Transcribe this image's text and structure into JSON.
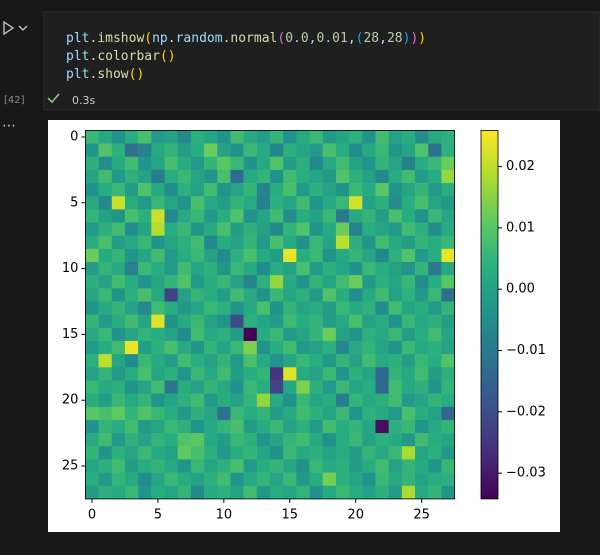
{
  "cell": {
    "execution_count": "[42]",
    "time": "0.3s",
    "code": [
      [
        "plt",
        ".",
        "imshow",
        "(",
        "np",
        ".",
        "random",
        ".",
        "normal",
        "(",
        "0.0",
        ",",
        "0.01",
        ",",
        "(",
        "28",
        ",",
        "28",
        ")",
        ")",
        ")"
      ],
      [
        "plt",
        ".",
        "colorbar",
        "(",
        ")"
      ],
      [
        "plt",
        ".",
        "show",
        "(",
        ")"
      ]
    ]
  },
  "chart_data": {
    "type": "heatmap",
    "colormap": "viridis",
    "xlim": [
      -0.5,
      27.5
    ],
    "ylim": [
      27.5,
      -0.5
    ],
    "xticks": [
      0,
      5,
      10,
      15,
      20,
      25
    ],
    "yticks": [
      0,
      5,
      10,
      15,
      20,
      25
    ],
    "clim": [
      -0.0342,
      0.0259
    ],
    "cticks": [
      {
        "value": -0.03,
        "label": "−0.03"
      },
      {
        "value": -0.02,
        "label": "−0.02"
      },
      {
        "value": -0.01,
        "label": "−0.01"
      },
      {
        "value": 0,
        "label": "0.00"
      },
      0.01,
      0.02
    ],
    "values": [
      [
        0.006,
        0.002,
        -0.004,
        0.003,
        0.008,
        -0.002,
        0.0,
        -0.006,
        0.004,
        0.001,
        -0.003,
        0.007,
        0.002,
        -0.001,
        0.005,
        -0.004,
        0.002,
        0.006,
        -0.002,
        0.001,
        0.004,
        -0.003,
        0.007,
        0.0,
        0.003,
        -0.005,
        0.002,
        0.004
      ],
      [
        -0.003,
        0.009,
        0.004,
        -0.012,
        -0.008,
        0.002,
        0.005,
        -0.001,
        0.003,
        0.012,
        0.0,
        -0.004,
        0.006,
        0.002,
        -0.007,
        0.004,
        0.001,
        -0.002,
        0.008,
        0.003,
        -0.005,
        0.002,
        0.006,
        -0.003,
        0.001,
        0.009,
        -0.012,
        0.004
      ],
      [
        0.004,
        -0.005,
        0.002,
        0.007,
        -0.003,
        0.001,
        0.008,
        0.003,
        -0.002,
        0.005,
        0.01,
        0.006,
        -0.004,
        0.002,
        0.009,
        -0.001,
        0.004,
        -0.006,
        0.002,
        0.007,
        0.0,
        -0.003,
        0.005,
        0.001,
        -0.008,
        0.003,
        0.006,
        0.012
      ],
      [
        0.001,
        0.007,
        -0.002,
        0.004,
        0.0,
        -0.009,
        0.003,
        0.006,
        0.001,
        -0.003,
        0.008,
        -0.013,
        0.002,
        0.005,
        -0.004,
        0.007,
        0.003,
        0.001,
        -0.002,
        0.009,
        0.004,
        0.0,
        -0.006,
        0.003,
        0.007,
        -0.001,
        0.002,
        0.016
      ],
      [
        -0.004,
        0.003,
        0.006,
        -0.001,
        0.009,
        0.002,
        -0.005,
        0.004,
        0.0,
        0.007,
        -0.003,
        0.001,
        0.005,
        -0.007,
        0.003,
        0.008,
        -0.002,
        0.004,
        0.0,
        -0.004,
        0.006,
        0.002,
        0.01,
        -0.003,
        0.001,
        0.005,
        -0.002,
        0.003
      ],
      [
        0.002,
        -0.006,
        0.021,
        0.003,
        -0.002,
        0.006,
        0.001,
        -0.004,
        0.008,
        0.002,
        -0.001,
        0.005,
        0.003,
        -0.008,
        0.004,
        0.001,
        0.007,
        -0.003,
        0.002,
        0.006,
        0.022,
        0.0,
        0.004,
        -0.005,
        0.003,
        0.008,
        0.001,
        -0.002
      ],
      [
        0.005,
        0.0,
        -0.003,
        0.008,
        0.004,
        0.021,
        -0.006,
        0.002,
        0.006,
        -0.002,
        0.003,
        0.009,
        -0.004,
        0.001,
        0.007,
        -0.005,
        0.003,
        0.0,
        0.006,
        -0.01,
        0.002,
        0.005,
        -0.001,
        0.008,
        0.003,
        -0.004,
        0.006,
        0.001
      ],
      [
        -0.002,
        0.004,
        0.007,
        -0.005,
        0.001,
        0.019,
        0.003,
        0.006,
        -0.003,
        0.002,
        0.008,
        -0.001,
        0.004,
        0.0,
        -0.006,
        0.005,
        0.009,
        -0.003,
        0.002,
        0.012,
        -0.008,
        0.003,
        0.001,
        -0.002,
        0.007,
        0.004,
        -0.005,
        0.002
      ],
      [
        0.003,
        0.008,
        -0.001,
        0.002,
        0.006,
        -0.004,
        0.001,
        0.004,
        0.007,
        -0.006,
        0.003,
        0.0,
        0.005,
        -0.002,
        0.008,
        0.002,
        -0.004,
        0.006,
        0.001,
        0.02,
        0.004,
        -0.003,
        0.007,
        0.002,
        -0.001,
        0.005,
        0.003,
        0.006
      ],
      [
        0.012,
        0.002,
        0.005,
        -0.003,
        0.001,
        0.007,
        -0.002,
        0.003,
        0.006,
        0.0,
        -0.005,
        0.004,
        0.008,
        0.002,
        -0.001,
        0.024,
        0.003,
        0.006,
        -0.004,
        0.002,
        0.005,
        0.001,
        -0.006,
        0.004,
        0.009,
        -0.002,
        0.003,
        0.024
      ],
      [
        -0.001,
        0.005,
        0.002,
        -0.008,
        0.006,
        0.003,
        -0.002,
        0.007,
        0.001,
        0.004,
        -0.003,
        0.006,
        0.002,
        -0.005,
        0.003,
        0.0,
        0.008,
        -0.002,
        0.004,
        0.001,
        -0.004,
        0.006,
        0.003,
        0.0,
        -0.003,
        0.005,
        -0.01,
        0.002
      ],
      [
        0.004,
        0.0,
        0.007,
        0.003,
        -0.004,
        0.001,
        0.005,
        0.009,
        -0.002,
        0.003,
        0.006,
        0.0,
        -0.007,
        0.004,
        0.016,
        0.002,
        -0.003,
        0.005,
        0.001,
        0.007,
        0.012,
        -0.002,
        0.004,
        0.001,
        0.006,
        -0.005,
        0.003,
        0.01
      ],
      [
        0.001,
        0.006,
        -0.003,
        0.004,
        0.008,
        0.002,
        -0.022,
        0.0,
        0.005,
        0.003,
        -0.001,
        0.007,
        0.002,
        -0.004,
        0.006,
        0.001,
        0.004,
        -0.002,
        0.009,
        0.003,
        -0.005,
        0.002,
        0.007,
        0.0,
        0.004,
        -0.002,
        0.006,
        -0.012
      ],
      [
        -0.003,
        0.002,
        0.005,
        0.0,
        -0.006,
        0.007,
        0.003,
        -0.002,
        0.001,
        0.006,
        0.004,
        -0.003,
        0.002,
        0.008,
        -0.004,
        0.005,
        0.001,
        0.003,
        -0.001,
        0.006,
        0.002,
        0.004,
        -0.005,
        0.007,
        0.001,
        0.003,
        -0.002,
        0.005
      ],
      [
        0.005,
        -0.002,
        0.003,
        0.007,
        0.001,
        0.023,
        -0.004,
        0.002,
        0.006,
        0.0,
        -0.003,
        -0.02,
        0.004,
        0.001,
        -0.002,
        0.007,
        0.003,
        0.005,
        -0.001,
        0.002,
        0.008,
        0.0,
        0.003,
        -0.004,
        0.006,
        0.002,
        0.004,
        -0.001
      ],
      [
        0.002,
        0.006,
        -0.004,
        0.001,
        0.005,
        0.003,
        0.0,
        -0.005,
        0.007,
        0.002,
        0.004,
        -0.001,
        -0.034,
        0.003,
        0.006,
        -0.002,
        0.001,
        0.005,
        0.012,
        0.0,
        -0.003,
        0.004,
        0.002,
        0.006,
        -0.001,
        0.003,
        0.007,
        0.001
      ],
      [
        -0.002,
        0.003,
        0.007,
        0.024,
        -0.001,
        0.004,
        0.008,
        0.002,
        -0.003,
        0.005,
        0.001,
        0.006,
        0.014,
        -0.004,
        0.003,
        0.007,
        -0.002,
        0.0,
        0.004,
        -0.006,
        0.002,
        0.005,
        0.001,
        -0.003,
        0.006,
        0.002,
        0.004,
        0.0
      ],
      [
        0.004,
        0.02,
        0.001,
        -0.005,
        0.006,
        0.002,
        -0.001,
        0.007,
        0.003,
        0.0,
        0.005,
        -0.002,
        0.008,
        0.002,
        -0.004,
        0.001,
        0.006,
        0.003,
        -0.002,
        0.005,
        0.0,
        0.007,
        0.002,
        0.004,
        -0.001,
        0.006,
        0.003,
        0.009
      ],
      [
        0.0,
        0.005,
        -0.002,
        0.003,
        0.008,
        0.001,
        0.004,
        -0.003,
        0.006,
        0.002,
        0.007,
        -0.001,
        0.003,
        0.005,
        -0.025,
        0.023,
        0.002,
        0.0,
        0.006,
        -0.003,
        0.004,
        0.001,
        -0.014,
        0.005,
        0.002,
        0.007,
        -0.001,
        0.004
      ],
      [
        0.006,
        0.002,
        0.004,
        -0.003,
        0.001,
        0.007,
        -0.011,
        0.003,
        0.0,
        0.005,
        0.002,
        -0.004,
        0.006,
        0.003,
        -0.022,
        0.001,
        0.014,
        0.004,
        -0.002,
        0.006,
        0.001,
        0.003,
        -0.014,
        0.007,
        0.002,
        0.004,
        -0.003,
        0.005
      ],
      [
        0.003,
        -0.001,
        0.006,
        0.002,
        0.005,
        -0.003,
        0.001,
        0.004,
        0.007,
        -0.002,
        0.003,
        0.0,
        0.005,
        0.016,
        0.002,
        -0.004,
        0.006,
        0.001,
        0.003,
        -0.009,
        0.005,
        0.002,
        0.004,
        0.007,
        -0.002,
        0.001,
        0.005,
        0.003
      ],
      [
        0.01,
        0.008,
        0.011,
        0.005,
        0.009,
        0.006,
        0.003,
        -0.002,
        0.004,
        0.001,
        -0.012,
        0.006,
        0.003,
        0.005,
        -0.001,
        0.002,
        0.007,
        0.004,
        0.001,
        0.006,
        -0.003,
        0.004,
        0.002,
        -0.002,
        0.008,
        0.003,
        0.0,
        -0.014
      ],
      [
        -0.004,
        0.005,
        0.003,
        0.007,
        -0.002,
        0.001,
        0.006,
        0.004,
        -0.003,
        0.002,
        0.005,
        0.008,
        -0.001,
        0.003,
        0.006,
        0.0,
        0.004,
        -0.002,
        0.007,
        0.003,
        0.005,
        0.001,
        -0.032,
        0.004,
        0.006,
        -0.003,
        0.002,
        0.005
      ],
      [
        0.002,
        0.007,
        -0.002,
        0.004,
        0.0,
        0.005,
        0.003,
        0.009,
        0.01,
        0.002,
        -0.001,
        0.006,
        0.004,
        -0.003,
        0.001,
        0.005,
        0.007,
        0.002,
        -0.004,
        0.003,
        0.006,
        0.0,
        0.004,
        0.002,
        -0.002,
        0.007,
        0.003,
        0.001
      ],
      [
        0.005,
        -0.003,
        0.004,
        0.001,
        0.006,
        0.002,
        0.0,
        0.011,
        0.008,
        0.004,
        -0.002,
        0.003,
        0.005,
        0.001,
        -0.004,
        0.006,
        0.002,
        0.004,
        0.0,
        0.003,
        -0.001,
        0.005,
        0.002,
        0.006,
        0.018,
        0.001,
        0.004,
        -0.002
      ],
      [
        0.001,
        0.004,
        0.007,
        -0.001,
        0.003,
        0.005,
        0.002,
        -0.003,
        0.006,
        0.001,
        0.004,
        0.008,
        -0.002,
        0.003,
        0.005,
        0.001,
        -0.004,
        0.006,
        0.002,
        0.004,
        -0.001,
        0.003,
        0.007,
        0.0,
        0.005,
        0.002,
        -0.003,
        0.006
      ],
      [
        0.003,
        -0.002,
        0.005,
        0.002,
        -0.005,
        0.001,
        0.006,
        0.003,
        0.0,
        0.004,
        0.007,
        -0.003,
        0.002,
        0.005,
        0.001,
        0.006,
        -0.002,
        0.003,
        0.013,
        0.004,
        0.001,
        -0.004,
        0.006,
        0.002,
        0.005,
        0.0,
        0.003,
        0.004
      ],
      [
        -0.001,
        0.004,
        0.002,
        0.006,
        -0.003,
        0.003,
        0.001,
        0.005,
        -0.006,
        0.002,
        0.004,
        0.0,
        0.007,
        -0.002,
        0.003,
        0.001,
        0.005,
        -0.004,
        0.002,
        0.006,
        0.003,
        0.0,
        0.004,
        -0.001,
        0.018,
        0.002,
        0.005,
        -0.003
      ]
    ]
  }
}
